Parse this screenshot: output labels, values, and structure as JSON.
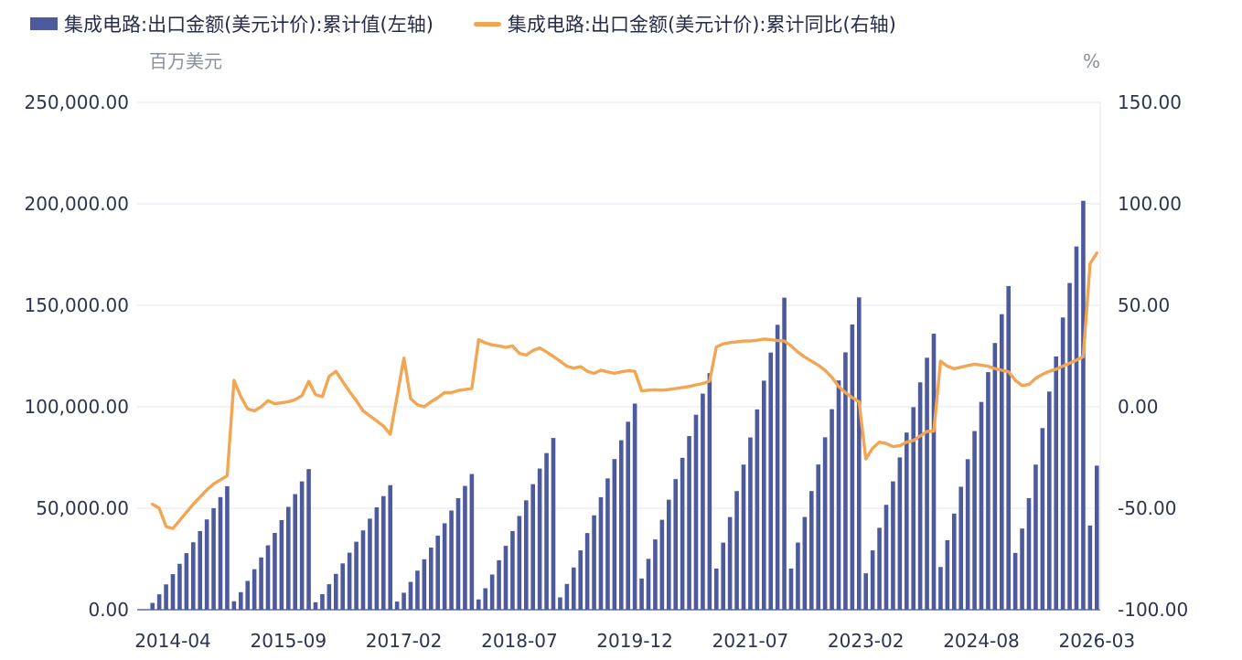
{
  "legend": [
    {
      "label": "集成电路:出口金额(美元计价):累计值(左轴)",
      "type": "bar",
      "color": "#4e5a9e"
    },
    {
      "label": "集成电路:出口金额(美元计价):累计同比(右轴)",
      "type": "line",
      "color": "#f2a552"
    }
  ],
  "left_axis": {
    "unit": "百万美元",
    "min": 0,
    "max": 250000,
    "tick_values": [
      250000,
      200000,
      150000,
      100000,
      50000,
      0
    ],
    "tick_labels": [
      "250,000.00",
      "200,000.00",
      "150,000.00",
      "100,000.00",
      "50,000.00",
      "0.00"
    ]
  },
  "right_axis": {
    "unit": "%",
    "min": -100,
    "max": 150,
    "tick_values": [
      150,
      100,
      50,
      0,
      -50,
      -100
    ],
    "tick_labels": [
      "150.00",
      "100.00",
      "50.00",
      "0.00",
      "-50.00",
      "-100.00"
    ]
  },
  "x_axis": {
    "ticks": [
      {
        "label": "2014-04",
        "index": 3
      },
      {
        "label": "2015-09",
        "index": 20
      },
      {
        "label": "2017-02",
        "index": 37
      },
      {
        "label": "2018-07",
        "index": 54
      },
      {
        "label": "2019-12",
        "index": 71
      },
      {
        "label": "2021-07",
        "index": 88
      },
      {
        "label": "2023-02",
        "index": 105
      },
      {
        "label": "2024-08",
        "index": 122
      },
      {
        "label": "2026-03",
        "index": 139
      }
    ]
  },
  "chart_data": {
    "type": "bar+line",
    "title": "",
    "grid": true,
    "categories": [
      "2014-01",
      "2014-02",
      "2014-03",
      "2014-04",
      "2014-05",
      "2014-06",
      "2014-07",
      "2014-08",
      "2014-09",
      "2014-10",
      "2014-11",
      "2014-12",
      "2015-01",
      "2015-02",
      "2015-03",
      "2015-04",
      "2015-05",
      "2015-06",
      "2015-07",
      "2015-08",
      "2015-09",
      "2015-10",
      "2015-11",
      "2015-12",
      "2016-01",
      "2016-02",
      "2016-03",
      "2016-04",
      "2016-05",
      "2016-06",
      "2016-07",
      "2016-08",
      "2016-09",
      "2016-10",
      "2016-11",
      "2016-12",
      "2017-01",
      "2017-02",
      "2017-03",
      "2017-04",
      "2017-05",
      "2017-06",
      "2017-07",
      "2017-08",
      "2017-09",
      "2017-10",
      "2017-11",
      "2017-12",
      "2018-01",
      "2018-02",
      "2018-03",
      "2018-04",
      "2018-05",
      "2018-06",
      "2018-07",
      "2018-08",
      "2018-09",
      "2018-10",
      "2018-11",
      "2018-12",
      "2019-01",
      "2019-02",
      "2019-03",
      "2019-04",
      "2019-05",
      "2019-06",
      "2019-07",
      "2019-08",
      "2019-09",
      "2019-10",
      "2019-11",
      "2019-12",
      "2020-02",
      "2020-03",
      "2020-04",
      "2020-05",
      "2020-06",
      "2020-07",
      "2020-08",
      "2020-09",
      "2020-10",
      "2020-11",
      "2020-12",
      "2021-02",
      "2021-03",
      "2021-04",
      "2021-05",
      "2021-06",
      "2021-07",
      "2021-08",
      "2021-09",
      "2021-10",
      "2021-11",
      "2021-12",
      "2022-02",
      "2022-03",
      "2022-04",
      "2022-05",
      "2022-06",
      "2022-07",
      "2022-08",
      "2022-09",
      "2022-10",
      "2022-11",
      "2022-12",
      "2023-02",
      "2023-03",
      "2023-04",
      "2023-05",
      "2023-06",
      "2023-07",
      "2023-08",
      "2023-09",
      "2023-10",
      "2023-11",
      "2023-12",
      "2024-02",
      "2024-03",
      "2024-04",
      "2024-05",
      "2024-06",
      "2024-07",
      "2024-08",
      "2024-09",
      "2024-10",
      "2024-11",
      "2024-12",
      "2025-02",
      "2025-03",
      "2025-04",
      "2025-05",
      "2025-06",
      "2025-07",
      "2025-08",
      "2025-09",
      "2025-10",
      "2025-11",
      "2025-12",
      "2026-02",
      "2026-03"
    ],
    "series": [
      {
        "name": "集成电路:出口金额(美元计价):累计值(左轴)",
        "type": "bar",
        "axis": "left",
        "unit": "百万美元",
        "color": "#4e5a9e",
        "values": [
          3350,
          7610,
          12480,
          17530,
          22640,
          27880,
          33240,
          38770,
          44500,
          50040,
          55510,
          60870,
          4160,
          8660,
          14200,
          19960,
          25780,
          31740,
          37840,
          44150,
          50670,
          56970,
          63210,
          69310,
          3680,
          7670,
          12580,
          17680,
          22830,
          28110,
          33510,
          39100,
          44870,
          50450,
          55980,
          61380,
          4010,
          8360,
          13710,
          19260,
          24880,
          30630,
          36520,
          42600,
          48890,
          54980,
          61000,
          66880,
          5080,
          10580,
          17350,
          24380,
          31490,
          38760,
          46210,
          53920,
          61870,
          69570,
          77190,
          84640,
          6090,
          12700,
          20820,
          29250,
          37790,
          46520,
          55460,
          64710,
          74250,
          83500,
          92640,
          101580,
          15390,
          25070,
          34630,
          44310,
          54220,
          64360,
          74860,
          85580,
          96080,
          106460,
          116600,
          20300,
          33060,
          45680,
          58440,
          71510,
          84890,
          98730,
          112880,
          126720,
          140410,
          153790,
          20320,
          33090,
          45710,
          58490,
          71570,
          84960,
          98820,
          112980,
          126830,
          140530,
          153920,
          17950,
          29240,
          40390,
          51680,
          63240,
          75070,
          87310,
          99820,
          112060,
          124170,
          136000,
          21050,
          34290,
          47370,
          60610,
          74170,
          88040,
          102400,
          117070,
          131430,
          145620,
          159500,
          28000,
          40000,
          55000,
          71500,
          89500,
          107500,
          124800,
          144000,
          161000,
          179000,
          201500,
          41500,
          71000
        ]
      },
      {
        "name": "集成电路:出口金额(美元计价):累计同比(右轴)",
        "type": "line",
        "axis": "right",
        "unit": "%",
        "color": "#f2a552",
        "values": [
          -48,
          -50,
          -59,
          -60,
          -56,
          -52,
          -48,
          -44.5,
          -41,
          -38,
          -36,
          -34,
          13,
          5,
          -1,
          -2,
          0,
          3,
          1.5,
          2,
          2.5,
          3.5,
          5.5,
          12.5,
          6,
          5,
          15,
          17.5,
          12.5,
          7.5,
          3,
          -2,
          -4.5,
          -7,
          -9.5,
          -13.5,
          5,
          24,
          4,
          1,
          0,
          2.5,
          4.5,
          7,
          7,
          8,
          8.5,
          9,
          33,
          31.5,
          30.5,
          30,
          29.3,
          30,
          26.3,
          25.5,
          27.7,
          29,
          27,
          24.8,
          22.5,
          20,
          19,
          19.8,
          17.5,
          16.5,
          18,
          17.2,
          16.5,
          17.2,
          17.8,
          17.5,
          7.8,
          8.2,
          8.4,
          8.2,
          8.5,
          9,
          9.5,
          10,
          10.8,
          11.5,
          12.7,
          29.5,
          31,
          31.6,
          32,
          32.4,
          32.4,
          32.8,
          33.4,
          33.1,
          32.6,
          32.4,
          30,
          27,
          24.5,
          22.5,
          20.5,
          18,
          14.5,
          10,
          7,
          4.5,
          2.5,
          -25.7,
          -20.4,
          -17.4,
          -18.1,
          -19.6,
          -19.2,
          -17.4,
          -16.6,
          -14.4,
          -12.1,
          -12,
          22.5,
          20,
          18.8,
          19.5,
          20.3,
          21,
          20.5,
          20,
          18.8,
          18,
          17.3,
          13,
          10.5,
          11,
          14,
          16,
          17.5,
          18.5,
          20,
          21.5,
          23,
          24.7,
          70.5,
          75.8
        ]
      }
    ]
  }
}
